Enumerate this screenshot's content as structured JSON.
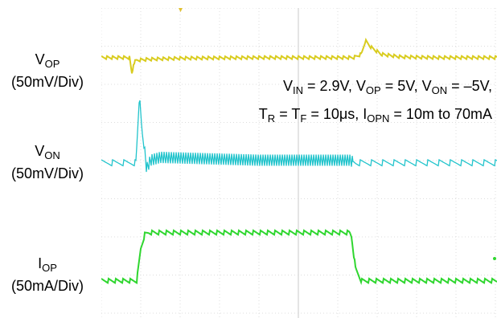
{
  "chart_data": {
    "type": "line",
    "title": "",
    "xlabel": "",
    "ylabel": "",
    "grid": true,
    "background": "#ffffff",
    "channels": [
      {
        "name_main": "V",
        "name_sub": "OP",
        "scale": "(50mV/Div)",
        "color": "#d9cc1f",
        "x": [
          0,
          0.72,
          0.74,
          0.78,
          0.82,
          0.9,
          1.2,
          2.0,
          3.0,
          4.0,
          5.0,
          6.4,
          6.6,
          6.7,
          6.85,
          7.1,
          7.6,
          8.5,
          10.0
        ],
        "y": [
          0,
          0,
          -0.22,
          -0.5,
          -0.15,
          -0.08,
          -0.05,
          -0.02,
          -0.01,
          0,
          0,
          0,
          0.1,
          0.5,
          0.3,
          0.1,
          0.02,
          0,
          0
        ]
      },
      {
        "name_main": "V",
        "name_sub": "ON",
        "scale": "(50mV/Div)",
        "color": "#22c4cc",
        "x": [
          0,
          0.88,
          0.97,
          1.03,
          1.15,
          1.25,
          1.5,
          2.5,
          4.0,
          6.3,
          6.45,
          7.5,
          10.0
        ],
        "y": [
          0,
          0,
          1.2,
          0.6,
          -0.1,
          0.05,
          0.1,
          0.08,
          0.05,
          0.05,
          0,
          0,
          0
        ]
      },
      {
        "name_main": "I",
        "name_sub": "OP",
        "scale": "(50mA/Div)",
        "color": "#2fd62f",
        "x": [
          0,
          0.9,
          1.0,
          1.1,
          1.2,
          6.3,
          6.35,
          6.45,
          6.6,
          10.0
        ],
        "y": [
          0,
          0,
          0.8,
          1.15,
          1.2,
          1.2,
          1.1,
          0.3,
          0,
          0
        ]
      }
    ],
    "annotation_line1": [
      {
        "t": "V"
      },
      {
        "s": "IN"
      },
      {
        "t": " = 2.9V, V"
      },
      {
        "s": "OP"
      },
      {
        "t": " = 5V, V"
      },
      {
        "s": "ON"
      },
      {
        "t": " = –5V,"
      }
    ],
    "annotation_line2": [
      {
        "t": "T"
      },
      {
        "s": "R"
      },
      {
        "t": " = T"
      },
      {
        "s": "F"
      },
      {
        "t": " = 10μs, I"
      },
      {
        "s": "OPN"
      },
      {
        "t": " = 10m to 70mA"
      }
    ]
  }
}
